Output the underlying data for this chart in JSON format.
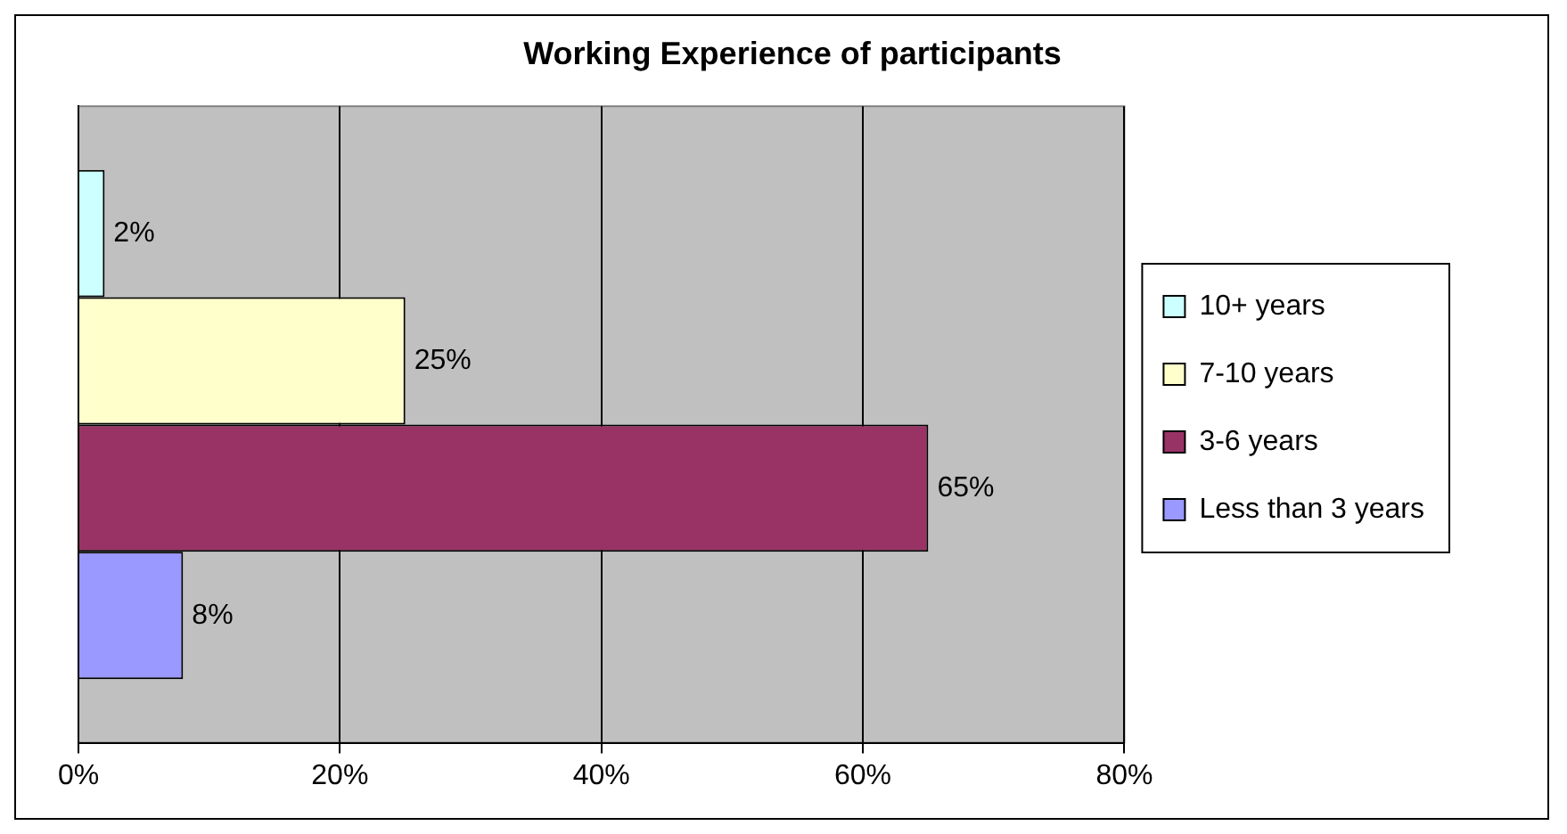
{
  "chart_data": {
    "type": "bar",
    "orientation": "horizontal",
    "title": "Working Experience of participants",
    "categories": [
      null
    ],
    "series": [
      {
        "name": "10+ years",
        "color": "#ccffff",
        "values": [
          2
        ],
        "value_labels": [
          "2%"
        ]
      },
      {
        "name": "7-10 years",
        "color": "#ffffcc",
        "values": [
          25
        ],
        "value_labels": [
          "25%"
        ]
      },
      {
        "name": "3-6 years",
        "color": "#993366",
        "values": [
          65
        ],
        "value_labels": [
          "65%"
        ]
      },
      {
        "name": "Less than 3 years",
        "color": "#9999ff",
        "values": [
          8
        ],
        "value_labels": [
          "8%"
        ]
      }
    ],
    "xlim": [
      0,
      80
    ],
    "xticks": [
      {
        "value": 0,
        "label": "0%"
      },
      {
        "value": 20,
        "label": "20%"
      },
      {
        "value": 40,
        "label": "40%"
      },
      {
        "value": 60,
        "label": "60%"
      },
      {
        "value": 80,
        "label": "80%"
      }
    ],
    "grid": "x",
    "legend": "right"
  }
}
